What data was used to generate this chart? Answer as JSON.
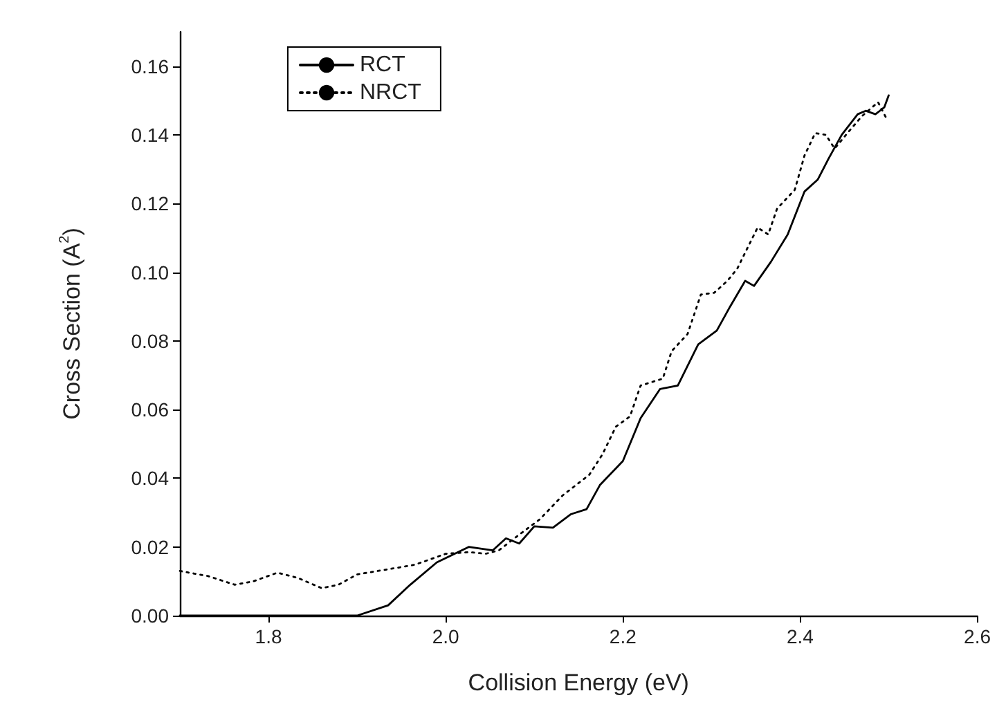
{
  "chart_data": {
    "type": "line",
    "xlabel": "Collision Energy (eV)",
    "ylabel": "Cross Section (A$^{2}$)",
    "xlim": [
      1.7,
      2.6
    ],
    "xticks": [
      {
        "value": 1.8,
        "label": "1.8"
      },
      {
        "value": 2.0,
        "label": "2.0"
      },
      {
        "value": 2.2,
        "label": "2.2"
      },
      {
        "value": 2.4,
        "label": "2.4"
      },
      {
        "value": 2.6,
        "label": "2.6"
      }
    ],
    "ylim": [
      0,
      0.17
    ],
    "yticks": [
      {
        "value": 0,
        "label": "0.00"
      },
      {
        "value": 0.02,
        "label": "0.02"
      },
      {
        "value": 0.04,
        "label": "0.04"
      },
      {
        "value": 0.06,
        "label": "0.06"
      },
      {
        "value": 0.08,
        "label": "0.08"
      },
      {
        "value": 0.1,
        "label": "0.10"
      },
      {
        "value": 0.12,
        "label": "0.12"
      },
      {
        "value": 0.14,
        "label": "0.14"
      },
      {
        "value": 0.16,
        "label": "0.16"
      }
    ],
    "grid": false,
    "legend": "top left",
    "marker": "none",
    "series": [
      {
        "name": "RCT",
        "color": "#000000",
        "line_style": "solid",
        "x": [
          1.7,
          1.8,
          1.9,
          1.935,
          1.96,
          1.99,
          2.026,
          2.053,
          2.068,
          2.083,
          2.1,
          2.121,
          2.141,
          2.159,
          2.174,
          2.2,
          2.22,
          2.242,
          2.262,
          2.285,
          2.306,
          2.321,
          2.338,
          2.348,
          2.367,
          2.386,
          2.405,
          2.42,
          2.432,
          2.447,
          2.465,
          2.474,
          2.485,
          2.495,
          2.5
        ],
        "values": [
          0,
          0,
          0,
          0.003,
          0.009,
          0.0155,
          0.02,
          0.019,
          0.0225,
          0.021,
          0.026,
          0.0256,
          0.0295,
          0.031,
          0.038,
          0.045,
          0.0575,
          0.066,
          0.067,
          0.079,
          0.083,
          0.09,
          0.0975,
          0.096,
          0.103,
          0.111,
          0.1235,
          0.127,
          0.133,
          0.14,
          0.146,
          0.147,
          0.146,
          0.148,
          0.1515
        ]
      },
      {
        "name": "NRCT",
        "color": "#000000",
        "line_style": "dotted",
        "x": [
          1.7,
          1.732,
          1.762,
          1.783,
          1.81,
          1.833,
          1.86,
          1.879,
          1.9,
          1.935,
          1.965,
          2.0,
          2.026,
          2.045,
          2.06,
          2.08,
          2.106,
          2.132,
          2.162,
          2.177,
          2.192,
          2.208,
          2.22,
          2.245,
          2.255,
          2.273,
          2.288,
          2.303,
          2.318,
          2.329,
          2.352,
          2.364,
          2.374,
          2.394,
          2.405,
          2.417,
          2.429,
          2.439,
          2.455,
          2.47,
          2.488,
          2.497
        ],
        "values": [
          0.013,
          0.0115,
          0.009,
          0.01,
          0.0125,
          0.011,
          0.008,
          0.009,
          0.012,
          0.0135,
          0.0148,
          0.018,
          0.0185,
          0.018,
          0.019,
          0.023,
          0.028,
          0.035,
          0.041,
          0.047,
          0.055,
          0.058,
          0.067,
          0.069,
          0.077,
          0.082,
          0.0935,
          0.094,
          0.0975,
          0.101,
          0.113,
          0.111,
          0.1185,
          0.124,
          0.134,
          0.1405,
          0.14,
          0.136,
          0.141,
          0.1455,
          0.1495,
          0.145
        ]
      }
    ]
  }
}
